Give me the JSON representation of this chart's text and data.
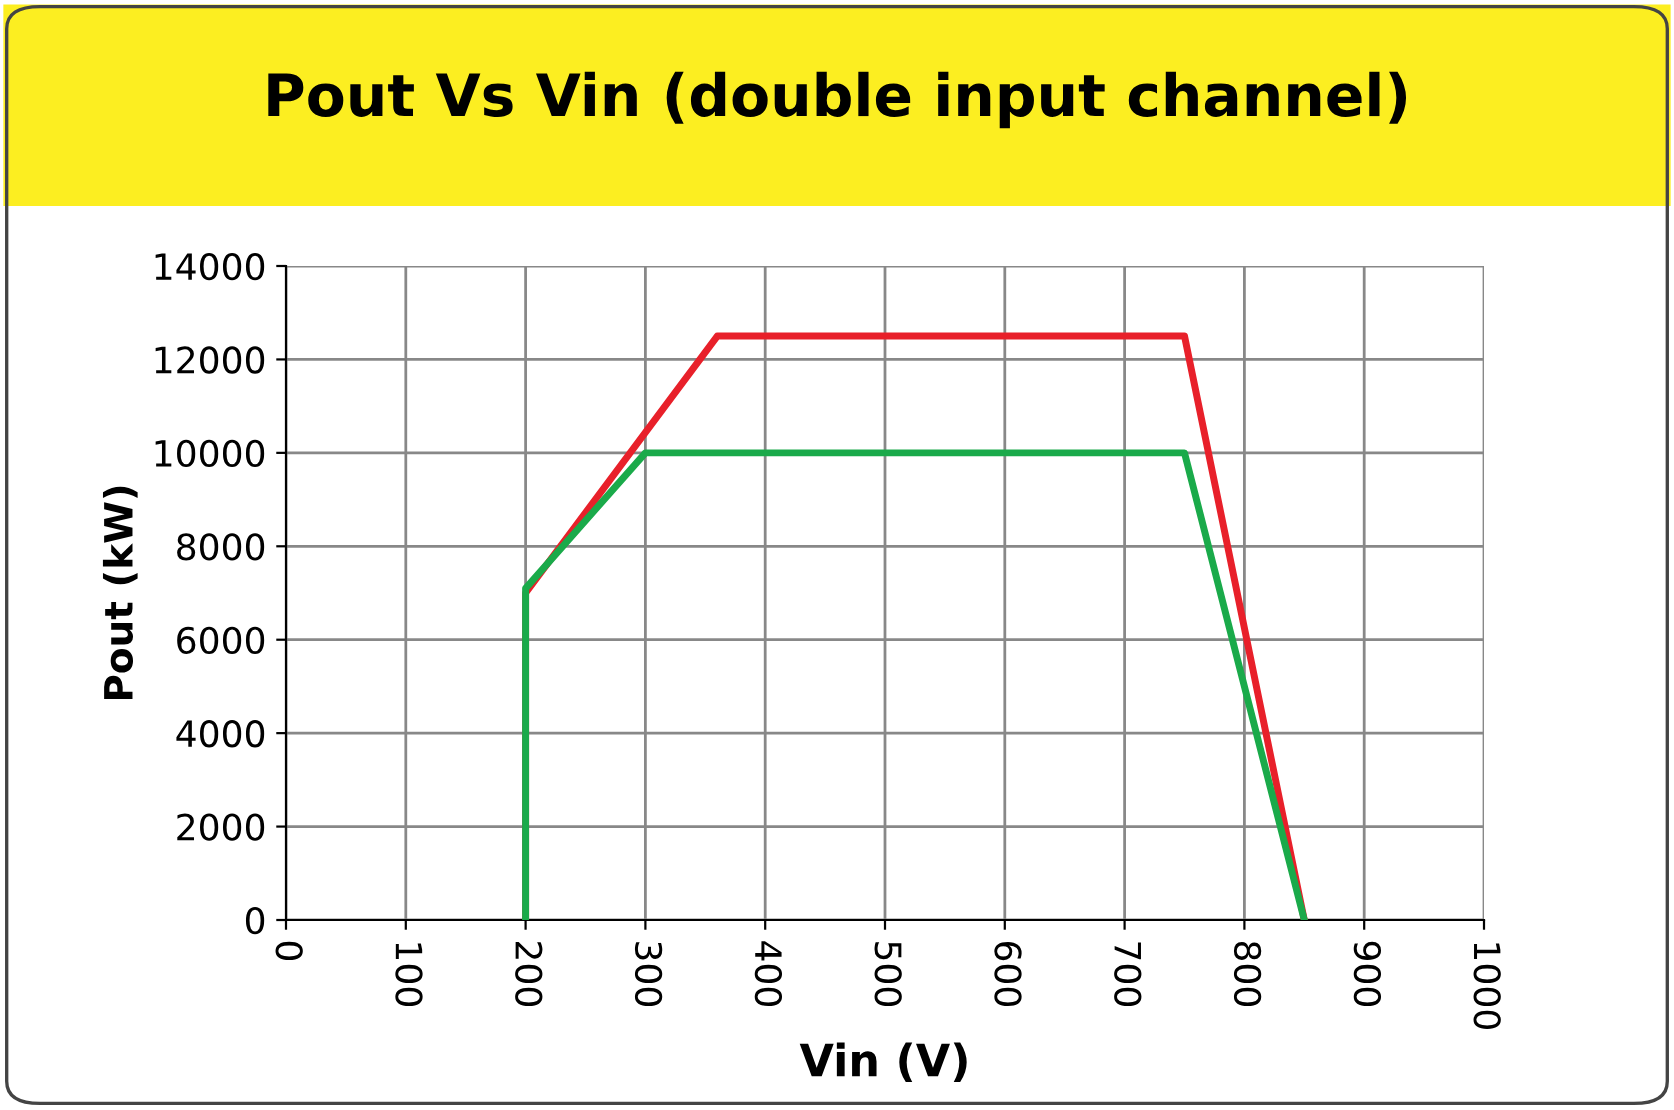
{
  "chart_data": {
    "type": "line",
    "title": "Pout Vs Vin (double input channel)",
    "xlabel": "Vin (V)",
    "ylabel": "Pout (kW)",
    "series": [
      {
        "color": "#e8202a",
        "x": [
          200,
          200,
          360,
          750,
          850
        ],
        "values": [
          0,
          7000,
          12500,
          12500,
          0
        ]
      },
      {
        "color": "#1aaa4a",
        "x": [
          200,
          200,
          300,
          750,
          850
        ],
        "values": [
          0,
          7100,
          10000,
          10000,
          0
        ]
      }
    ],
    "xlim": [
      0,
      1000
    ],
    "xticks": [
      0,
      100,
      200,
      300,
      400,
      500,
      600,
      700,
      800,
      900,
      1000
    ],
    "ylim": [
      0,
      14000
    ],
    "yticks": [
      0,
      2000,
      4000,
      6000,
      8000,
      10000,
      12000,
      14000
    ],
    "grid": true,
    "marker": "none",
    "line_style": "solid"
  }
}
